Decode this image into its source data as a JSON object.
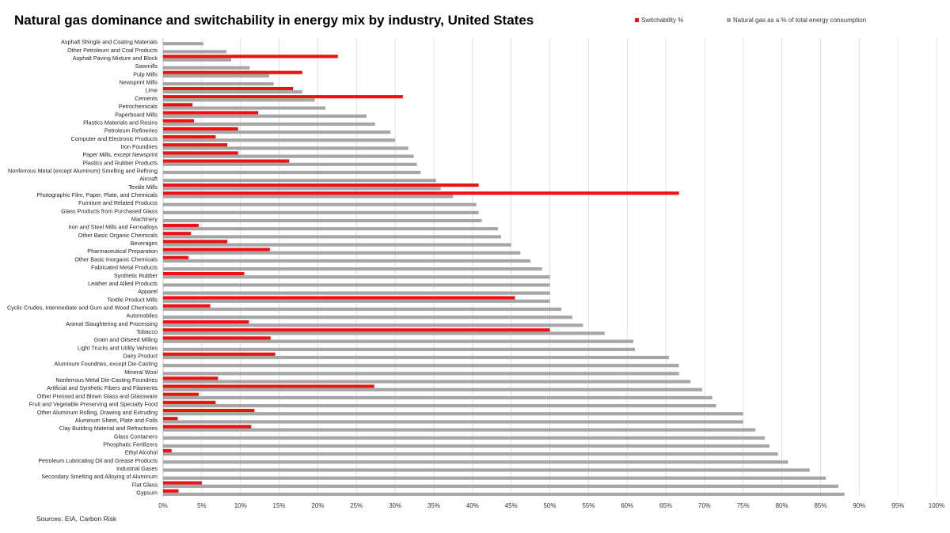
{
  "chart_data": {
    "type": "bar",
    "orientation": "horizontal",
    "title": "Natural gas dominance and switchability in energy mix by industry, United States",
    "xlabel": "",
    "ylabel": "",
    "xlim": [
      0,
      100
    ],
    "x_ticks": [
      "0%",
      "5%",
      "10%",
      "15%",
      "20%",
      "25%",
      "30%",
      "35%",
      "40%",
      "45%",
      "50%",
      "55%",
      "60%",
      "65%",
      "70%",
      "75%",
      "80%",
      "85%",
      "90%",
      "95%",
      "100%"
    ],
    "grid": "vertical",
    "legend_position": "top-right",
    "categories": [
      "Asphalt Shingle and Coating Materials",
      "Other Petroleum and Coal Products",
      "Asphalt Paving Mixture and Block",
      "Sawmills",
      "Pulp Mills",
      "Newsprint Mills",
      "Lime",
      "Cements",
      "Petrochemicals",
      "Paperboard Mills",
      "Plastics Materials and Resins",
      "Petroleum Refineries",
      "Computer and Electronic Products",
      "Iron Foundries",
      "Paper Mills, except Newsprint",
      "Plastics and Rubber Products",
      "Nonferrous Metal (except Aluminum) Smelting and Refining",
      "Aircraft",
      "Textile Mills",
      "Photographic Film, Paper, Plate, and Chemicals",
      "Furniture and Related Products",
      "Glass Products from Purchased Glass",
      "Machinery",
      "Iron and Steel Mills and Ferroalloys",
      "Other Basic Organic Chemicals",
      "Beverages",
      "Pharmaceutical Preparation",
      "Other Basic Inorganic Chemicals",
      "Fabricated Metal Products",
      "Synthetic Rubber",
      "Leather and Allied Products",
      "Apparel",
      "Textile Product Mills",
      "Cyclic Crudes, Intermediate and Gum and Wood Chemicals",
      "Automobiles",
      "Animal Slaughtering and Processing",
      "Tobacco",
      "Grain and Oilseed Milling",
      "Light Trucks and Utility Vehicles",
      "Dairy Product",
      "Aluminum Foundries, except Die-Casting",
      "Mineral Wool",
      "Nonferrous Metal Die-Casting Foundries",
      "Artificial and Synthetic Fibers and Filaments",
      "Other Pressed and Blown Glass and Glassware",
      "Fruit and Vegetable Preserving and Specialty Food",
      "Other Aluminum Rolling, Drawing and Extruding",
      "Aluminum Sheet, Plate and Foils",
      "Clay Building Material and Refractories",
      "Glass Containers",
      "Phosphatic Fertilizers",
      "Ethyl Alcohol",
      "Petroleum Lubricating Oil and Grease Products",
      "Industrial Gases",
      "Secondary Smelting and Alloying of Aluminum",
      "Flat Glass",
      "Gypsum"
    ],
    "series": [
      {
        "name": "Switchability %",
        "color": "#ee1111",
        "values": [
          0,
          0,
          22.6,
          0,
          18,
          0,
          16.8,
          31,
          3.8,
          12.3,
          4,
          9.7,
          6.8,
          8.3,
          9.7,
          16.3,
          0,
          0,
          40.8,
          66.7,
          0,
          0,
          0,
          4.6,
          3.6,
          8.3,
          13.8,
          3.3,
          0,
          10.5,
          0,
          0,
          45.5,
          6.1,
          0,
          11.1,
          50,
          13.9,
          0,
          14.5,
          0,
          0,
          7.1,
          27.3,
          4.6,
          6.8,
          11.8,
          1.9,
          11.4,
          0,
          0,
          1.1,
          0,
          0,
          0,
          5,
          2
        ]
      },
      {
        "name": "Natural gas as a % of total energy consumption",
        "color": "#a6a6a6",
        "values": [
          5.2,
          8.2,
          8.8,
          11.2,
          13.7,
          14.3,
          18,
          19.6,
          21,
          26.3,
          27.4,
          29.4,
          30,
          31.7,
          32.4,
          32.8,
          33.3,
          35.3,
          35.9,
          37.5,
          40.5,
          40.8,
          41.2,
          43.3,
          43.7,
          45,
          46.2,
          47.5,
          49,
          50,
          50,
          50,
          50,
          51.5,
          52.9,
          54.3,
          57.1,
          60.8,
          61,
          65.4,
          66.7,
          66.7,
          68.2,
          69.7,
          71,
          71.5,
          75,
          75,
          76.6,
          77.8,
          78.4,
          79.5,
          80.8,
          83.6,
          85.7,
          87.3,
          88.1
        ]
      }
    ]
  },
  "source": "Sources: EIA, Carbon Risk"
}
